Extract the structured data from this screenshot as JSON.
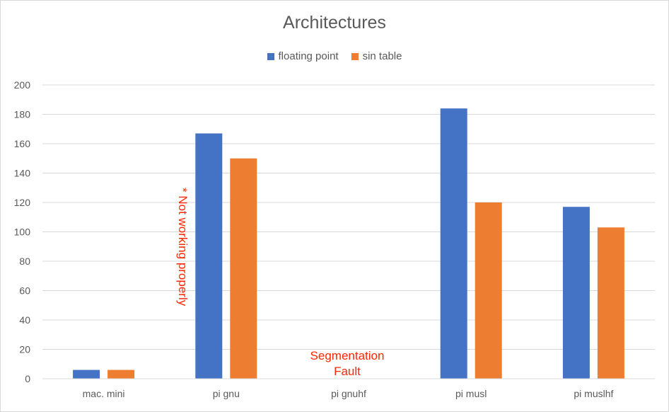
{
  "chart_data": {
    "type": "bar",
    "title": "Architectures",
    "xlabel": "",
    "ylabel": "",
    "categories": [
      "mac. mini",
      "pi gnu",
      "pi gnuhf",
      "pi musl",
      "pi muslhf"
    ],
    "series": [
      {
        "name": "floating point",
        "values": [
          6,
          167,
          null,
          184,
          117
        ],
        "color": "#4472c4"
      },
      {
        "name": "sin table",
        "values": [
          6,
          150,
          null,
          120,
          103
        ],
        "color": "#ed7d31"
      }
    ],
    "ylim": [
      0,
      200
    ],
    "yticks": [
      0,
      20,
      40,
      60,
      80,
      100,
      120,
      140,
      160,
      180,
      200
    ],
    "grid": true,
    "legend_position": "top",
    "annotations": {
      "not_working": "* Not working properly",
      "segfault_line1": "Segmentation",
      "segfault_line2": "Fault",
      "color": "#ff2600"
    }
  }
}
